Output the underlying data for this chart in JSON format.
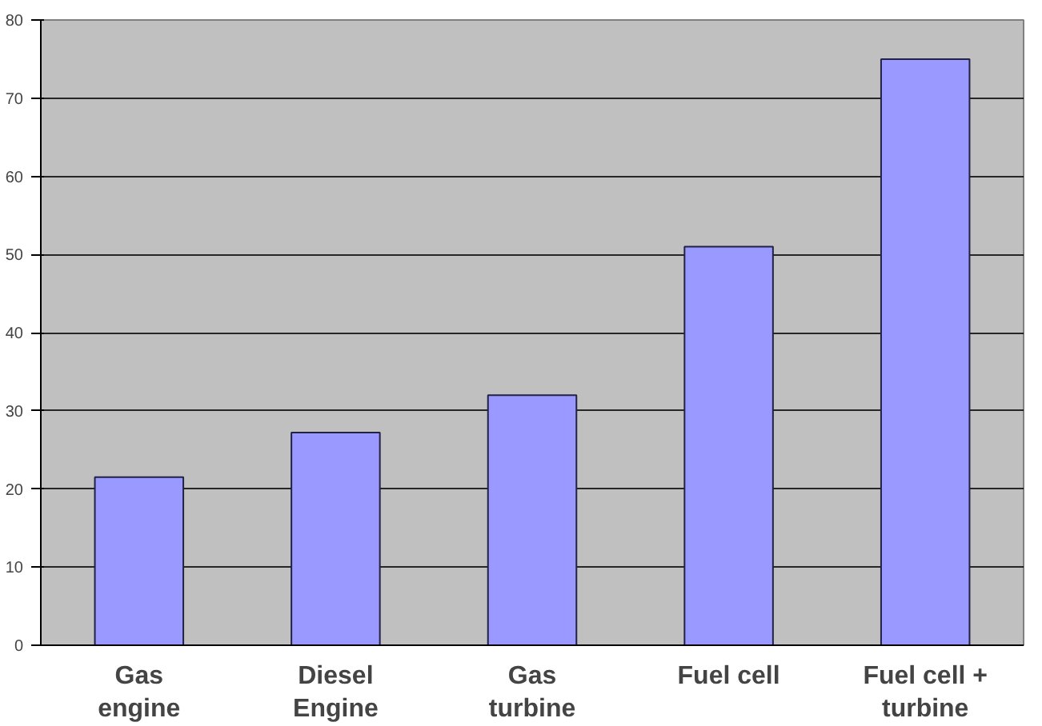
{
  "chart_data": {
    "type": "bar",
    "categories": [
      "Gas\nengine",
      "Diesel\nEngine",
      "Gas\nturbine",
      "Fuel cell",
      "Fuel cell +\nturbine"
    ],
    "values": [
      21.5,
      27.2,
      32,
      51,
      75
    ],
    "color": "#9999ff",
    "ylim": [
      0,
      80
    ],
    "yticks": [
      0,
      10,
      20,
      30,
      40,
      50,
      60,
      70,
      80
    ],
    "grid": "y"
  }
}
